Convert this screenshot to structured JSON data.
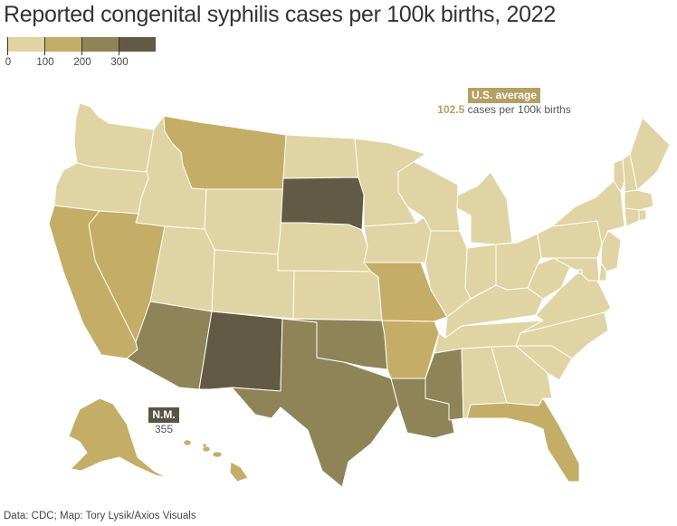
{
  "title": "Reported congenital syphilis cases per 100k births, 2022",
  "legend": {
    "ticks": [
      "0",
      "100",
      "200",
      "300"
    ],
    "colors": [
      "#e0d4a4",
      "#c4ad66",
      "#8f8458",
      "#635a46"
    ]
  },
  "callouts": {
    "us_average": {
      "label": "U.S. average",
      "value": "102.5",
      "unit": "cases per 100k births"
    },
    "new_mexico": {
      "label": "N.M.",
      "value": "355"
    }
  },
  "source": "Data: CDC; Map: Tory Lysik/Axios Visuals",
  "colors": {
    "border": "#ffffff",
    "callout_avg": "#b4a064",
    "callout_nm": "#5b5444",
    "text": "#333333"
  },
  "states": {
    "WA": 0,
    "OR": 0,
    "ID": 0,
    "MT": 1,
    "WY": 0,
    "ND": 0,
    "SD": 3,
    "NE": 0,
    "KS": 0,
    "CO": 0,
    "UT": 0,
    "NV": 1,
    "CA": 1,
    "AZ": 2,
    "NM": 3,
    "TX": 2,
    "OK": 2,
    "LA": 2,
    "AR": 1,
    "MO": 1,
    "MS": 2,
    "AL": 0,
    "FL": 1,
    "GA": 0,
    "SC": 0,
    "NC": 0,
    "TN": 0,
    "KY": 0,
    "VA": 0,
    "WV": 0,
    "OH": 0,
    "IN": 0,
    "IL": 0,
    "MI": 0,
    "WI": 0,
    "MN": 0,
    "IA": 0,
    "PA": 0,
    "NY": 0,
    "VT": 0,
    "NH": 0,
    "ME": 0,
    "MA": 0,
    "CT": 0,
    "RI": 0,
    "NJ": 0,
    "DE": 0,
    "MD": 0,
    "DC": 0,
    "AK": 1,
    "HI": 1
  }
}
